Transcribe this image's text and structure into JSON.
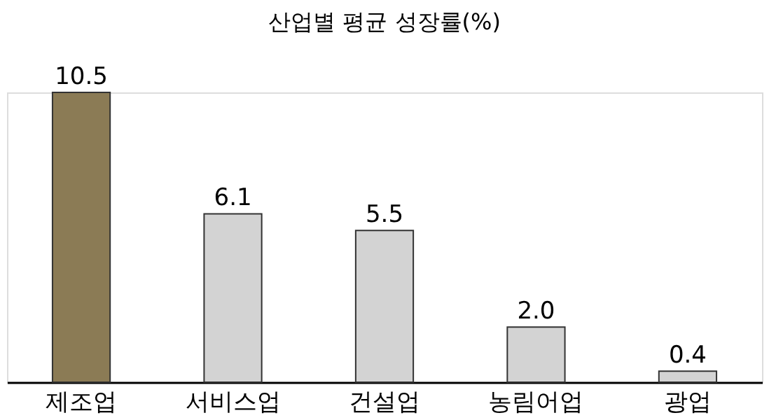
{
  "chart_data": {
    "type": "bar",
    "title": "산업별 평균 성장률(%)",
    "categories": [
      "제조업",
      "서비스업",
      "건설업",
      "농림어업",
      "광업"
    ],
    "values": [
      10.5,
      6.1,
      5.5,
      2.0,
      0.4
    ],
    "colors": [
      "#8b7b55",
      "#d3d3d3",
      "#d3d3d3",
      "#d3d3d3",
      "#d3d3d3"
    ],
    "value_labels": [
      "10.5",
      "6.1",
      "5.5",
      "2.0",
      "0.4"
    ],
    "grid": false
  }
}
